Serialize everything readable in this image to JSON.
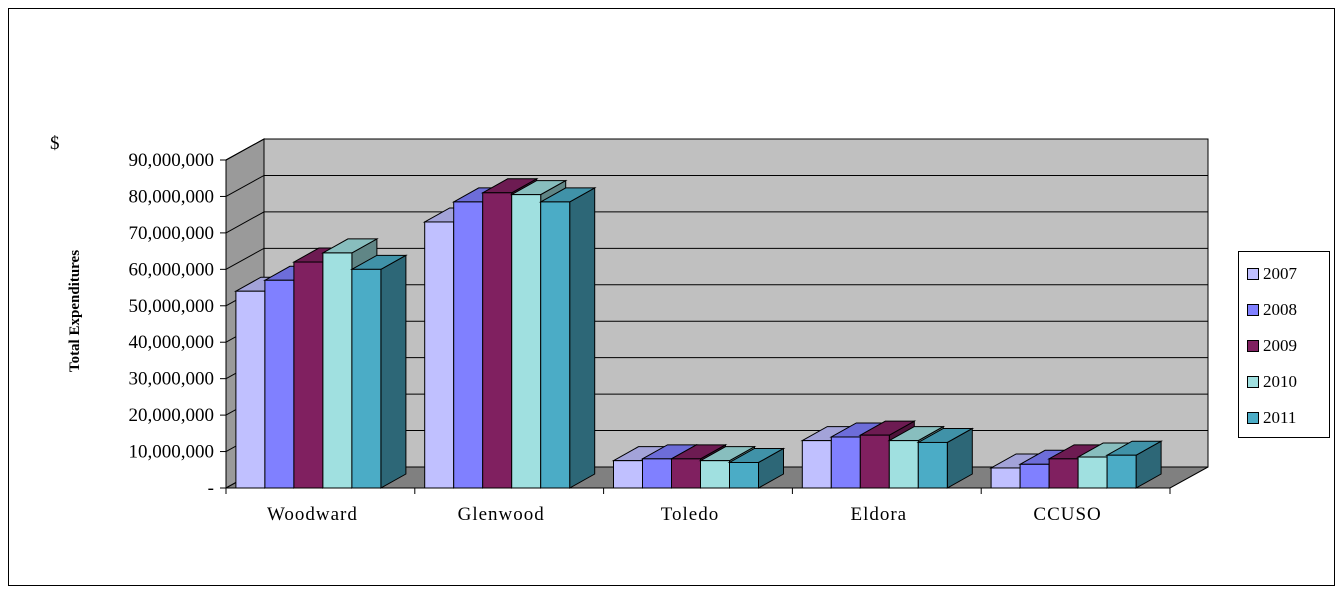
{
  "chart_data": {
    "type": "bar",
    "variant": "3d-clustered-column",
    "title": "",
    "ylabel": "Total Expenditures",
    "currency_symbol": "$",
    "ylim": [
      0,
      90000000
    ],
    "ytick_values": [
      0,
      10000000,
      20000000,
      30000000,
      40000000,
      50000000,
      60000000,
      70000000,
      80000000,
      90000000
    ],
    "ytick_labels": [
      "-",
      "10,000,000",
      "20,000,000",
      "30,000,000",
      "40,000,000",
      "50,000,000",
      "60,000,000",
      "70,000,000",
      "80,000,000",
      "90,000,000"
    ],
    "categories": [
      "Woodward",
      "Glenwood",
      "Toledo",
      "Eldora",
      "CCUSO"
    ],
    "series": [
      {
        "name": "2007",
        "color": "#C0C0FF",
        "values": [
          54000000,
          73000000,
          7500000,
          13000000,
          5500000
        ]
      },
      {
        "name": "2008",
        "color": "#8080FF",
        "values": [
          57000000,
          78500000,
          8000000,
          14000000,
          6500000
        ]
      },
      {
        "name": "2009",
        "color": "#802060",
        "values": [
          62000000,
          81000000,
          8000000,
          14500000,
          8000000
        ]
      },
      {
        "name": "2010",
        "color": "#A0E0E0",
        "values": [
          64500000,
          80500000,
          7500000,
          13000000,
          8500000
        ]
      },
      {
        "name": "2011",
        "color": "#4BACC6",
        "values": [
          60000000,
          78500000,
          7000000,
          12500000,
          9000000
        ]
      }
    ],
    "grid": true,
    "wall_color": "#C0C0C0",
    "legend_position": "right"
  }
}
